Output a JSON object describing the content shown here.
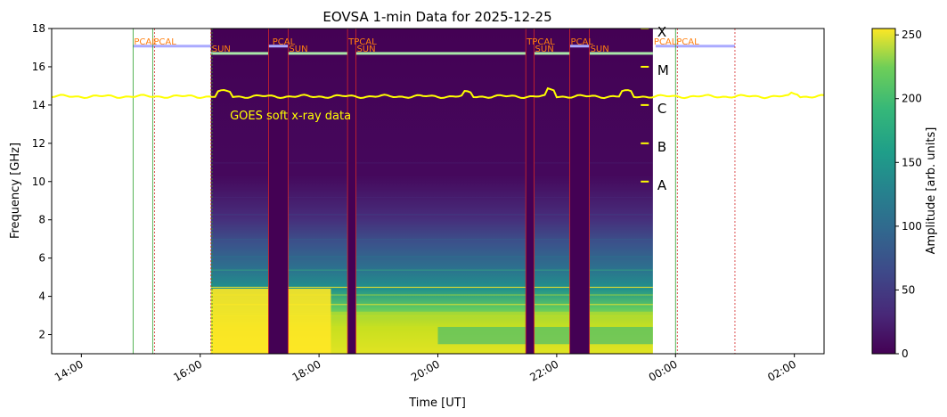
{
  "chart_data": {
    "type": "heatmap",
    "title": "EOVSA 1-min Data for 2025-12-25",
    "xlabel": "Time [UT]",
    "ylabel": "Frequency [GHz]",
    "x_range_hours": [
      13.5,
      26.5
    ],
    "y_range": [
      1.0,
      18.0
    ],
    "x_ticks": [
      {
        "h": 14,
        "label": "14:00"
      },
      {
        "h": 16,
        "label": "16:00"
      },
      {
        "h": 18,
        "label": "18:00"
      },
      {
        "h": 20,
        "label": "20:00"
      },
      {
        "h": 22,
        "label": "22:00"
      },
      {
        "h": 24,
        "label": "00:00"
      },
      {
        "h": 26,
        "label": "02:00"
      }
    ],
    "y_ticks": [
      2,
      4,
      6,
      8,
      10,
      12,
      14,
      16,
      18
    ],
    "colorbar": {
      "label": "Amplitude [arb. units]",
      "range": [
        0,
        255
      ],
      "ticks": [
        0,
        50,
        100,
        150,
        200,
        250
      ],
      "colormap": "viridis"
    },
    "data_window_hours": [
      16.18,
      23.62
    ],
    "dark_gaps_hours": [
      [
        17.15,
        17.48
      ],
      [
        18.48,
        18.62
      ],
      [
        21.48,
        21.62
      ],
      [
        22.22,
        22.55
      ]
    ],
    "goes_overlay": {
      "label": "GOES soft x-ray data",
      "color": "#ffff00",
      "class_labels": [
        {
          "name": "X",
          "freq": 18.0
        },
        {
          "name": "M",
          "freq": 16.0
        },
        {
          "name": "C",
          "freq": 14.0
        },
        {
          "name": "B",
          "freq": 12.0
        },
        {
          "name": "A",
          "freq": 10.0
        }
      ]
    },
    "scan_annotations": [
      {
        "label": "PCAL",
        "h": 14.87
      },
      {
        "label": "PCAL",
        "h": 15.2
      },
      {
        "label": "SUN",
        "h": 16.18
      },
      {
        "label": "PCAL",
        "h": 17.2
      },
      {
        "label": "SUN",
        "h": 17.48
      },
      {
        "label": "TPCAL",
        "h": 18.48
      },
      {
        "label": "SUN",
        "h": 18.62
      },
      {
        "label": "TPCAL",
        "h": 21.48
      },
      {
        "label": "SUN",
        "h": 21.62
      },
      {
        "label": "PCAL",
        "h": 22.22
      },
      {
        "label": "SUN",
        "h": 22.55
      },
      {
        "label": "PCAL",
        "h": 23.62
      },
      {
        "label": "PCAL",
        "h": 24.0
      }
    ]
  }
}
